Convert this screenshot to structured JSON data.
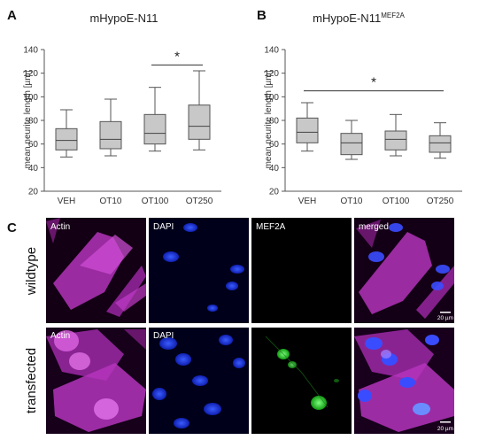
{
  "panels": {
    "a_letter": "A",
    "b_letter": "B",
    "c_letter": "C"
  },
  "chart_data": [
    {
      "type": "box",
      "title": "mHypoE-N11",
      "title_sup": "",
      "ylabel": "mean neurite length [µm]",
      "xlabel": "",
      "ylim": [
        20,
        140
      ],
      "yticks": [
        20,
        40,
        60,
        80,
        100,
        120,
        140
      ],
      "categories": [
        "VEH",
        "OT10",
        "OT100",
        "OT250"
      ],
      "boxes": [
        {
          "min": 49,
          "q1": 55,
          "median": 63,
          "q3": 73,
          "max": 89
        },
        {
          "min": 50,
          "q1": 56,
          "median": 64,
          "q3": 79,
          "max": 98
        },
        {
          "min": 54,
          "q1": 60,
          "median": 69,
          "q3": 85,
          "max": 108
        },
        {
          "min": 55,
          "q1": 64,
          "median": 75,
          "q3": 93,
          "max": 122
        }
      ],
      "significance": {
        "label": "*",
        "from": "OT100",
        "to": "OT250",
        "y": 127
      },
      "box_color": "#c8c8c8",
      "grid": false
    },
    {
      "type": "box",
      "title": "mHypoE-N11",
      "title_sup": "MEF2A",
      "ylabel": "mean neurite length [µm]",
      "xlabel": "",
      "ylim": [
        20,
        140
      ],
      "yticks": [
        20,
        40,
        60,
        80,
        100,
        120,
        140
      ],
      "categories": [
        "VEH",
        "OT10",
        "OT100",
        "OT250"
      ],
      "boxes": [
        {
          "min": 54,
          "q1": 61,
          "median": 70,
          "q3": 82,
          "max": 95
        },
        {
          "min": 47,
          "q1": 51,
          "median": 61,
          "q3": 69,
          "max": 80
        },
        {
          "min": 50,
          "q1": 55,
          "median": 64,
          "q3": 71,
          "max": 85
        },
        {
          "min": 48,
          "q1": 53,
          "median": 61,
          "q3": 67,
          "max": 78
        }
      ],
      "significance": {
        "label": "*",
        "from": "VEH",
        "to": "OT250",
        "y": 105
      },
      "box_color": "#c8c8c8",
      "grid": false
    }
  ],
  "micrographs": {
    "columns": [
      "Actin",
      "DAPI",
      "MEF2A",
      "merged"
    ],
    "rows": [
      "wildtype",
      "transfected"
    ],
    "scale_bar": "20 µm",
    "colors": {
      "actin": "#c23cc8",
      "dapi": "#1e3cff",
      "mef2a": "#2ee02e"
    }
  }
}
